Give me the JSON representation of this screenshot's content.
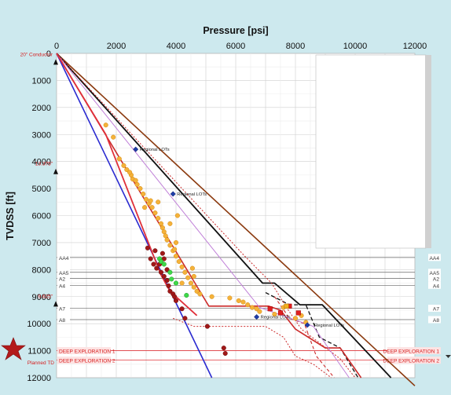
{
  "chart_data": {
    "type": "scatter",
    "title": "",
    "xlabel": "Pressure [psi]",
    "ylabel": "TVDSS [ft]",
    "x_axis_position": "top",
    "y_axis_inverted": true,
    "xlim": [
      0,
      12000
    ],
    "ylim": [
      0,
      12000
    ],
    "x_ticks": [
      "0",
      "2000",
      "4000",
      "6000",
      "8000",
      "10000",
      "12000"
    ],
    "y_ticks": [
      "0",
      "1000",
      "2000",
      "3000",
      "4000",
      "5000",
      "6000",
      "7000",
      "8000",
      "9000",
      "10000",
      "11000",
      "12000"
    ],
    "grid": true,
    "casing_points": [
      {
        "label": "20\" Conductor",
        "depth": 300
      },
      {
        "label": "13.375\"",
        "depth": 4350
      },
      {
        "label": "9.625\"",
        "depth": 9250
      }
    ],
    "planned_td_label": "Planned TD",
    "horizons": [
      {
        "name": "AA4",
        "depth": 7550,
        "color": "#666666"
      },
      {
        "name": "AA5",
        "depth": 8100,
        "color": "#666666"
      },
      {
        "name": "A2",
        "depth": 8320,
        "color": "#666666"
      },
      {
        "name": "A4",
        "depth": 8580,
        "color": "#666666"
      },
      {
        "name": "A7",
        "depth": 9430,
        "color": "#666666"
      },
      {
        "name": "A8",
        "depth": 9850,
        "color": "#666666"
      },
      {
        "name": "DEEP EXPLORATION 1",
        "depth": 11000,
        "color": "#e0393d"
      },
      {
        "name": "DEEP EXPLORATION 2",
        "depth": 11350,
        "color": "#e0393d"
      }
    ],
    "annotations": [
      {
        "text": "Regional LOTs",
        "x": 2650,
        "y": 3550
      },
      {
        "text": "Regional LOTs",
        "x": 3900,
        "y": 5200
      },
      {
        "text": "Regional LOTs",
        "x": 6700,
        "y": 9750
      },
      {
        "text": "Regional LOTs",
        "x": 8500,
        "y": 10050
      }
    ],
    "lines": [
      {
        "color": "#8b3a0f",
        "width": 1.6,
        "dash": "",
        "points": [
          [
            0,
            0
          ],
          [
            12000,
            12300
          ]
        ]
      },
      {
        "color": "#111111",
        "width": 1.8,
        "dash": "",
        "points": [
          [
            0,
            0
          ],
          [
            6900,
            8500
          ],
          [
            7300,
            8500
          ],
          [
            8150,
            9300
          ],
          [
            8900,
            9300
          ],
          [
            11200,
            12000
          ]
        ]
      },
      {
        "color": "#111111",
        "width": 1.3,
        "dash": "5,3",
        "points": [
          [
            7000,
            8850
          ],
          [
            7800,
            9300
          ],
          [
            8350,
            9300
          ],
          [
            8800,
            10500
          ],
          [
            9500,
            10900
          ],
          [
            10100,
            12000
          ]
        ]
      },
      {
        "color": "#cc2b2b",
        "width": 1.6,
        "dash": "",
        "points": [
          [
            0,
            0
          ],
          [
            5100,
            9350
          ],
          [
            7100,
            9350
          ],
          [
            7500,
            9500
          ],
          [
            8000,
            10200
          ],
          [
            9000,
            10900
          ],
          [
            9500,
            10900
          ],
          [
            10200,
            12000
          ]
        ]
      },
      {
        "color": "#cc2b2b",
        "width": 1.1,
        "dash": "4,3",
        "points": [
          [
            7300,
            9000
          ],
          [
            7800,
            9800
          ],
          [
            8300,
            10000
          ],
          [
            8700,
            11200
          ],
          [
            9300,
            12000
          ]
        ]
      },
      {
        "color": "#cc2b2b",
        "width": 1.0,
        "dash": "2,2",
        "points": [
          [
            0,
            0
          ],
          [
            6300,
            7500
          ],
          [
            7200,
            8500
          ],
          [
            7700,
            9400
          ],
          [
            8200,
            10200
          ],
          [
            9500,
            11300
          ],
          [
            10000,
            12000
          ]
        ]
      },
      {
        "color": "#cc2b2b",
        "width": 1.0,
        "dash": "2,2",
        "points": [
          [
            3900,
            9800
          ],
          [
            4600,
            10100
          ],
          [
            7000,
            10100
          ],
          [
            7600,
            10500
          ],
          [
            8000,
            11200
          ],
          [
            8600,
            11500
          ],
          [
            9200,
            12000
          ]
        ]
      },
      {
        "color": "#c080d8",
        "width": 1.0,
        "dash": "",
        "points": [
          [
            0,
            0
          ],
          [
            6800,
            9400
          ],
          [
            8600,
            10100
          ],
          [
            9800,
            12000
          ]
        ]
      },
      {
        "color": "#2a2ad0",
        "width": 1.6,
        "dash": "",
        "points": [
          [
            0,
            0
          ],
          [
            5200,
            12000
          ]
        ]
      },
      {
        "color": "#e0303a",
        "width": 1.8,
        "dash": "",
        "points": [
          [
            0,
            0
          ],
          [
            1650,
            3000
          ],
          [
            3500,
            8200
          ],
          [
            3800,
            8800
          ],
          [
            4700,
            9700
          ]
        ]
      }
    ],
    "series": [
      {
        "name": "",
        "marker": "circle",
        "color": "#f4b23a",
        "stroke": "#d48a12",
        "r": 2.8,
        "points": [
          [
            1650,
            2650
          ],
          [
            1900,
            3100
          ],
          [
            2100,
            3900
          ],
          [
            2250,
            4150
          ],
          [
            2350,
            4300
          ],
          [
            2500,
            4500
          ],
          [
            2550,
            4650
          ],
          [
            2700,
            4850
          ],
          [
            2800,
            5000
          ],
          [
            2900,
            5200
          ],
          [
            3000,
            5400
          ],
          [
            3100,
            5550
          ],
          [
            3200,
            5700
          ],
          [
            3300,
            5900
          ],
          [
            3400,
            6100
          ],
          [
            3500,
            6300
          ],
          [
            3550,
            6450
          ],
          [
            3600,
            6600
          ],
          [
            3650,
            6750
          ],
          [
            3700,
            6900
          ],
          [
            3800,
            7100
          ],
          [
            3900,
            7300
          ],
          [
            4000,
            7500
          ],
          [
            4100,
            7700
          ],
          [
            4200,
            7900
          ],
          [
            4300,
            8100
          ],
          [
            4400,
            8300
          ],
          [
            4500,
            8500
          ],
          [
            4600,
            8650
          ],
          [
            4700,
            8800
          ],
          [
            4800,
            8900
          ],
          [
            4200,
            8500
          ],
          [
            3800,
            6300
          ],
          [
            4050,
            6000
          ],
          [
            4000,
            7000
          ],
          [
            3400,
            5500
          ],
          [
            2950,
            5700
          ],
          [
            4550,
            7950
          ],
          [
            4600,
            8250
          ],
          [
            3950,
            7250
          ],
          [
            5200,
            9000
          ],
          [
            5800,
            9050
          ],
          [
            6100,
            9150
          ],
          [
            6250,
            9200
          ],
          [
            6400,
            9300
          ],
          [
            6550,
            9400
          ],
          [
            6700,
            9450
          ],
          [
            6800,
            9550
          ],
          [
            7300,
            9650
          ],
          [
            7600,
            9400
          ],
          [
            8000,
            9800
          ],
          [
            8200,
            9700
          ],
          [
            8350,
            9950
          ],
          [
            2450,
            4400
          ],
          [
            2650,
            4700
          ],
          [
            3150,
            5450
          ]
        ]
      },
      {
        "name": "",
        "marker": "circle",
        "color": "#a01818",
        "stroke": "#6d0d0d",
        "r": 2.8,
        "points": [
          [
            3050,
            7200
          ],
          [
            3150,
            7600
          ],
          [
            3250,
            7800
          ],
          [
            3350,
            7950
          ],
          [
            3500,
            8100
          ],
          [
            3600,
            8250
          ],
          [
            3700,
            8400
          ],
          [
            3750,
            8600
          ],
          [
            3800,
            8800
          ],
          [
            3900,
            8900
          ],
          [
            3700,
            8000
          ],
          [
            3600,
            7600
          ],
          [
            3450,
            7800
          ],
          [
            3300,
            7300
          ],
          [
            3950,
            9000
          ],
          [
            4000,
            9150
          ],
          [
            4200,
            9450
          ],
          [
            4300,
            9800
          ],
          [
            5050,
            10100
          ],
          [
            5600,
            10900
          ],
          [
            5650,
            11100
          ],
          [
            3550,
            7400
          ]
        ]
      },
      {
        "name": "",
        "marker": "circle",
        "color": "#3fd84a",
        "stroke": "#1d9a25",
        "r": 2.8,
        "points": [
          [
            3450,
            7600
          ],
          [
            3600,
            7800
          ],
          [
            3800,
            8100
          ],
          [
            4000,
            8500
          ],
          [
            4350,
            8950
          ],
          [
            3850,
            8350
          ],
          [
            3500,
            7700
          ]
        ]
      },
      {
        "name": "",
        "marker": "square",
        "color": "#e02020",
        "stroke": "#a00000",
        "r": 2.8,
        "points": [
          [
            7150,
            9450
          ],
          [
            7800,
            9350
          ],
          [
            8100,
            9600
          ],
          [
            7500,
            9600
          ]
        ]
      },
      {
        "name": "",
        "marker": "square",
        "color": "#f0b020",
        "stroke": "#b07000",
        "r": 2.8,
        "points": [
          [
            7700,
            9350
          ]
        ]
      },
      {
        "name": "",
        "marker": "diamond",
        "color": "#1f3da8",
        "stroke": "#0e1d66",
        "r": 3.2,
        "points": [
          [
            2650,
            3550
          ],
          [
            3900,
            5200
          ],
          [
            6700,
            9750
          ],
          [
            8400,
            10050
          ]
        ]
      }
    ]
  }
}
